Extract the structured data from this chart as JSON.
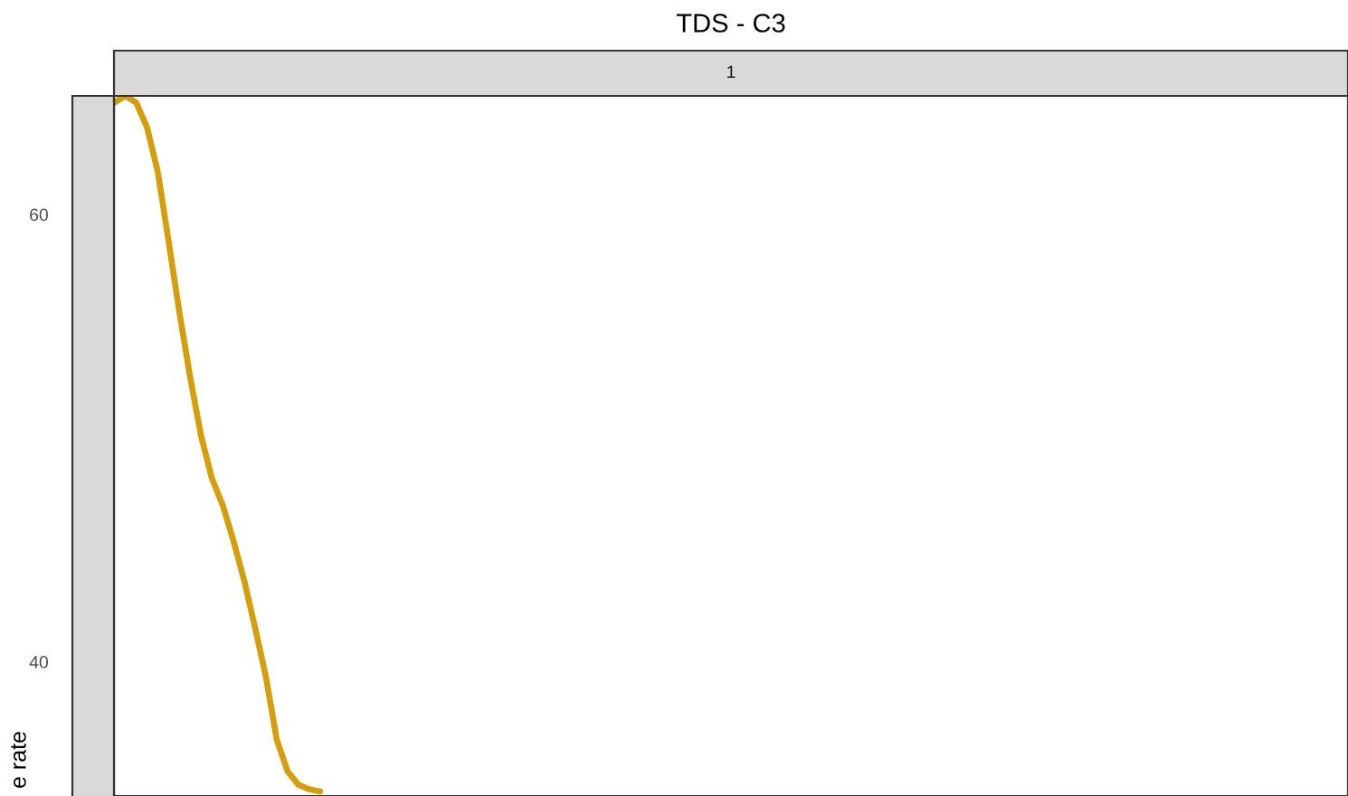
{
  "chart_data": {
    "type": "line",
    "title": "TDS - C3",
    "subtitle": "1",
    "ylabel": "e rate",
    "categories": [
      null,
      null,
      null,
      null,
      null,
      null,
      null,
      null,
      null,
      null,
      null,
      null,
      null,
      null,
      null,
      null,
      null,
      null,
      null,
      null,
      null,
      null,
      null,
      null,
      null,
      null,
      null,
      null,
      null,
      null,
      null,
      null,
      null,
      null,
      null,
      null,
      null,
      null,
      null,
      null,
      null,
      null,
      null,
      null,
      null,
      null,
      null,
      null,
      null,
      null,
      null,
      null,
      null,
      null,
      null,
      null,
      null,
      null,
      null,
      null,
      null,
      null,
      null,
      null,
      null,
      null,
      null,
      null,
      null,
      null,
      null,
      null,
      null,
      null,
      null,
      null,
      null,
      null,
      null,
      null,
      null,
      null,
      null,
      null,
      null,
      null,
      null,
      null,
      null,
      null,
      null,
      null,
      null,
      null,
      null,
      null,
      null,
      null,
      null,
      null,
      null,
      null,
      null,
      null,
      null,
      null,
      null,
      null,
      null,
      null,
      null,
      null,
      null,
      null,
      null
    ],
    "series": [
      {
        "color": "#d69e0c",
        "values": [
          65.0,
          65.3,
          65.0,
          63.9,
          61.9,
          58.8,
          55.6,
          52.7,
          50.1,
          48.2,
          47.0,
          45.4,
          43.6,
          41.5,
          39.3,
          36.5,
          35.1,
          34.5,
          34.3,
          34.2,
          null,
          null,
          null,
          null,
          null,
          null,
          null,
          null,
          null,
          null,
          null,
          null,
          null,
          null,
          null,
          null,
          null,
          null,
          null,
          null,
          null,
          null,
          null,
          null,
          null,
          null,
          null,
          null,
          null,
          null,
          null,
          null,
          null,
          null,
          null,
          null,
          null,
          null,
          null,
          null,
          null,
          null,
          null,
          null,
          null,
          null,
          null,
          null,
          null,
          null,
          null,
          null,
          null,
          null,
          null,
          null,
          null,
          null,
          null,
          null,
          null,
          null,
          null,
          null,
          null,
          null,
          null,
          null,
          null,
          null,
          null,
          null,
          null,
          null,
          null,
          null,
          null,
          null,
          null,
          null,
          null,
          null,
          null,
          null,
          null,
          null,
          null,
          null,
          null,
          null,
          null,
          null,
          null,
          null,
          null
        ]
      }
    ],
    "ylim": [
      34.0,
      65.3
    ],
    "yticks": [
      40,
      60
    ],
    "tick_labels": "y",
    "marker": "none",
    "line_style": "solid"
  }
}
